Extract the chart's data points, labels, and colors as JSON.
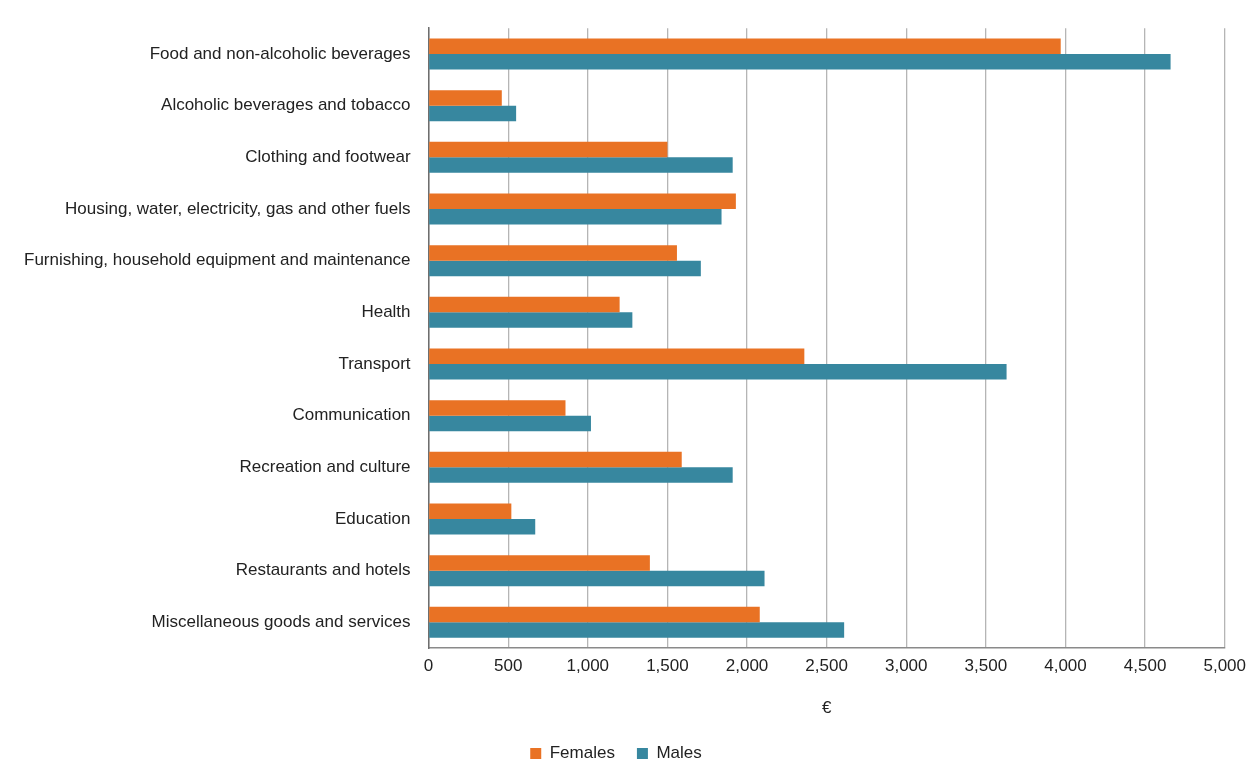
{
  "chart_data": {
    "type": "bar",
    "orientation": "horizontal",
    "xlabel": "€",
    "categories": [
      "Food and non-alcoholic beverages",
      "Alcoholic beverages and tobacco",
      "Clothing and footwear",
      "Housing, water, electricity, gas and other fuels",
      "Furnishing, household equipment and maintenance",
      "Health",
      "Transport",
      "Communication",
      "Recreation and culture",
      "Education",
      "Restaurants and hotels",
      "Miscellaneous goods and services"
    ],
    "series": [
      {
        "name": "Females",
        "color": "#e97224",
        "values": [
          3970,
          460,
          1500,
          1930,
          1560,
          1200,
          2360,
          860,
          1590,
          520,
          1390,
          2080
        ]
      },
      {
        "name": "Males",
        "color": "#37879f",
        "values": [
          4660,
          550,
          1910,
          1840,
          1710,
          1280,
          3630,
          1020,
          1910,
          670,
          2110,
          2610
        ]
      }
    ],
    "xlim": [
      0,
      5000
    ],
    "xticks": [
      {
        "value": 0,
        "label": "0"
      },
      {
        "value": 500,
        "label": "500"
      },
      {
        "value": 1000,
        "label": "1,000"
      },
      {
        "value": 1500,
        "label": "1,500"
      },
      {
        "value": 2000,
        "label": "2,000"
      },
      {
        "value": 2500,
        "label": "2,500"
      },
      {
        "value": 3000,
        "label": "3,000"
      },
      {
        "value": 3500,
        "label": "3,500"
      },
      {
        "value": 4000,
        "label": "4,000"
      },
      {
        "value": 4500,
        "label": "4,500"
      },
      {
        "value": 5000,
        "label": "5,000"
      }
    ],
    "grid": "x",
    "legend": "bottom"
  }
}
